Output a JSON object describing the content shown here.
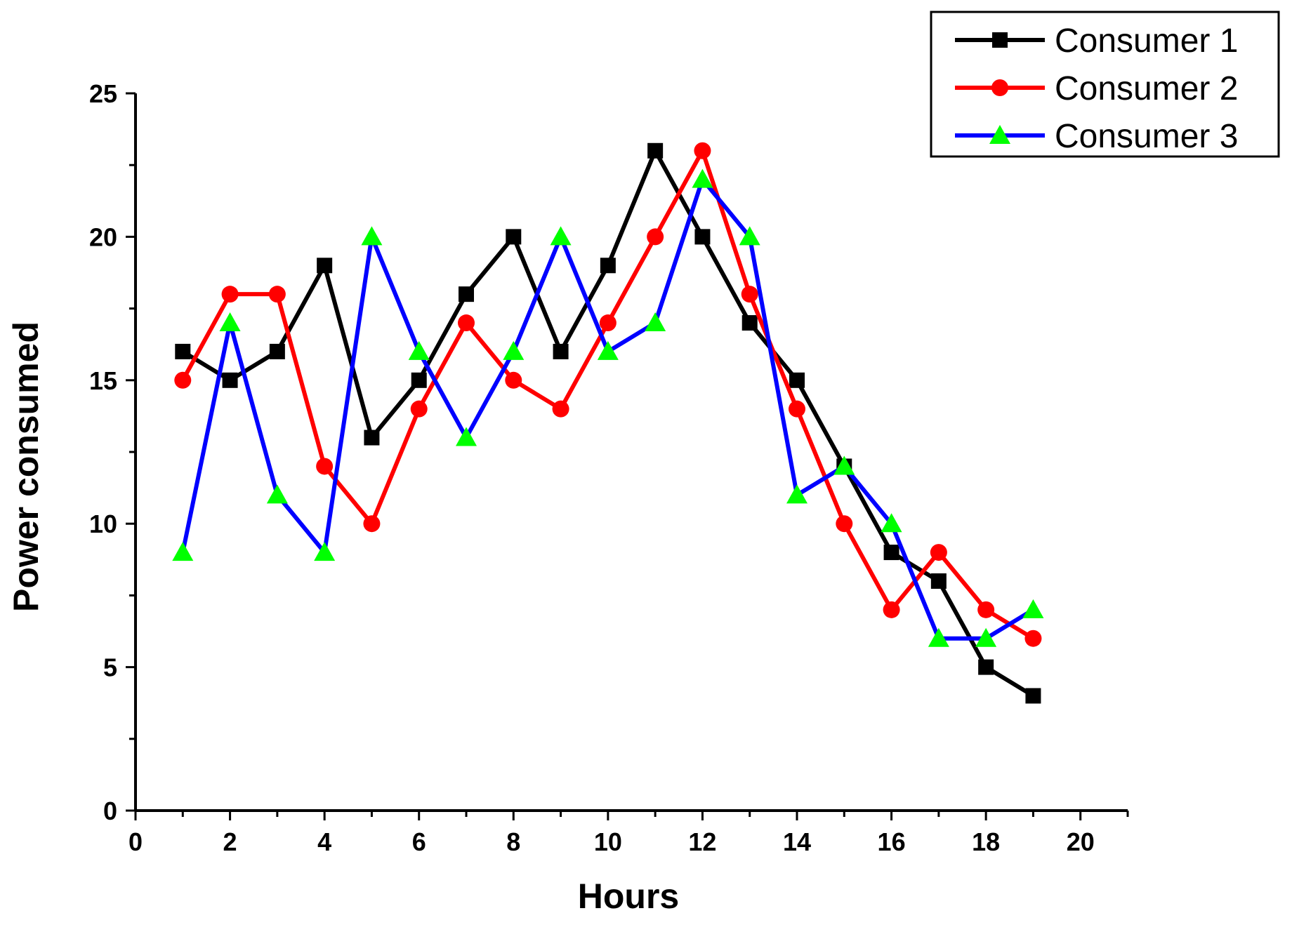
{
  "chart_data": {
    "type": "line",
    "title": "",
    "xlabel": "Hours",
    "ylabel": "Power consumed",
    "xlim": [
      0,
      21
    ],
    "ylim": [
      0,
      25
    ],
    "xticks": [
      0,
      2,
      4,
      6,
      8,
      10,
      12,
      14,
      16,
      18,
      20
    ],
    "yticks": [
      0,
      5,
      10,
      15,
      20,
      25
    ],
    "x": [
      1,
      2,
      3,
      4,
      5,
      6,
      7,
      8,
      9,
      10,
      11,
      12,
      13,
      14,
      15,
      16,
      17,
      18,
      19
    ],
    "legend_position": "top-right",
    "grid": false,
    "series": [
      {
        "name": "Consumer 1",
        "color": "#000000",
        "marker": "square",
        "marker_color": "#000000",
        "values": [
          16,
          15,
          16,
          19,
          13,
          15,
          18,
          20,
          16,
          19,
          23,
          20,
          17,
          15,
          12,
          9,
          8,
          5,
          4
        ]
      },
      {
        "name": "Consumer 2",
        "color": "#ff0000",
        "marker": "circle",
        "marker_color": "#ff0000",
        "values": [
          15,
          18,
          18,
          12,
          10,
          14,
          17,
          15,
          14,
          17,
          20,
          23,
          18,
          14,
          10,
          7,
          9,
          7,
          6
        ]
      },
      {
        "name": "Consumer 3",
        "color": "#0000ff",
        "marker": "triangle",
        "marker_color": "#00ff00",
        "values": [
          9,
          17,
          11,
          9,
          20,
          16,
          13,
          16,
          20,
          16,
          17,
          22,
          20,
          11,
          12,
          10,
          6,
          6,
          7
        ]
      }
    ]
  }
}
